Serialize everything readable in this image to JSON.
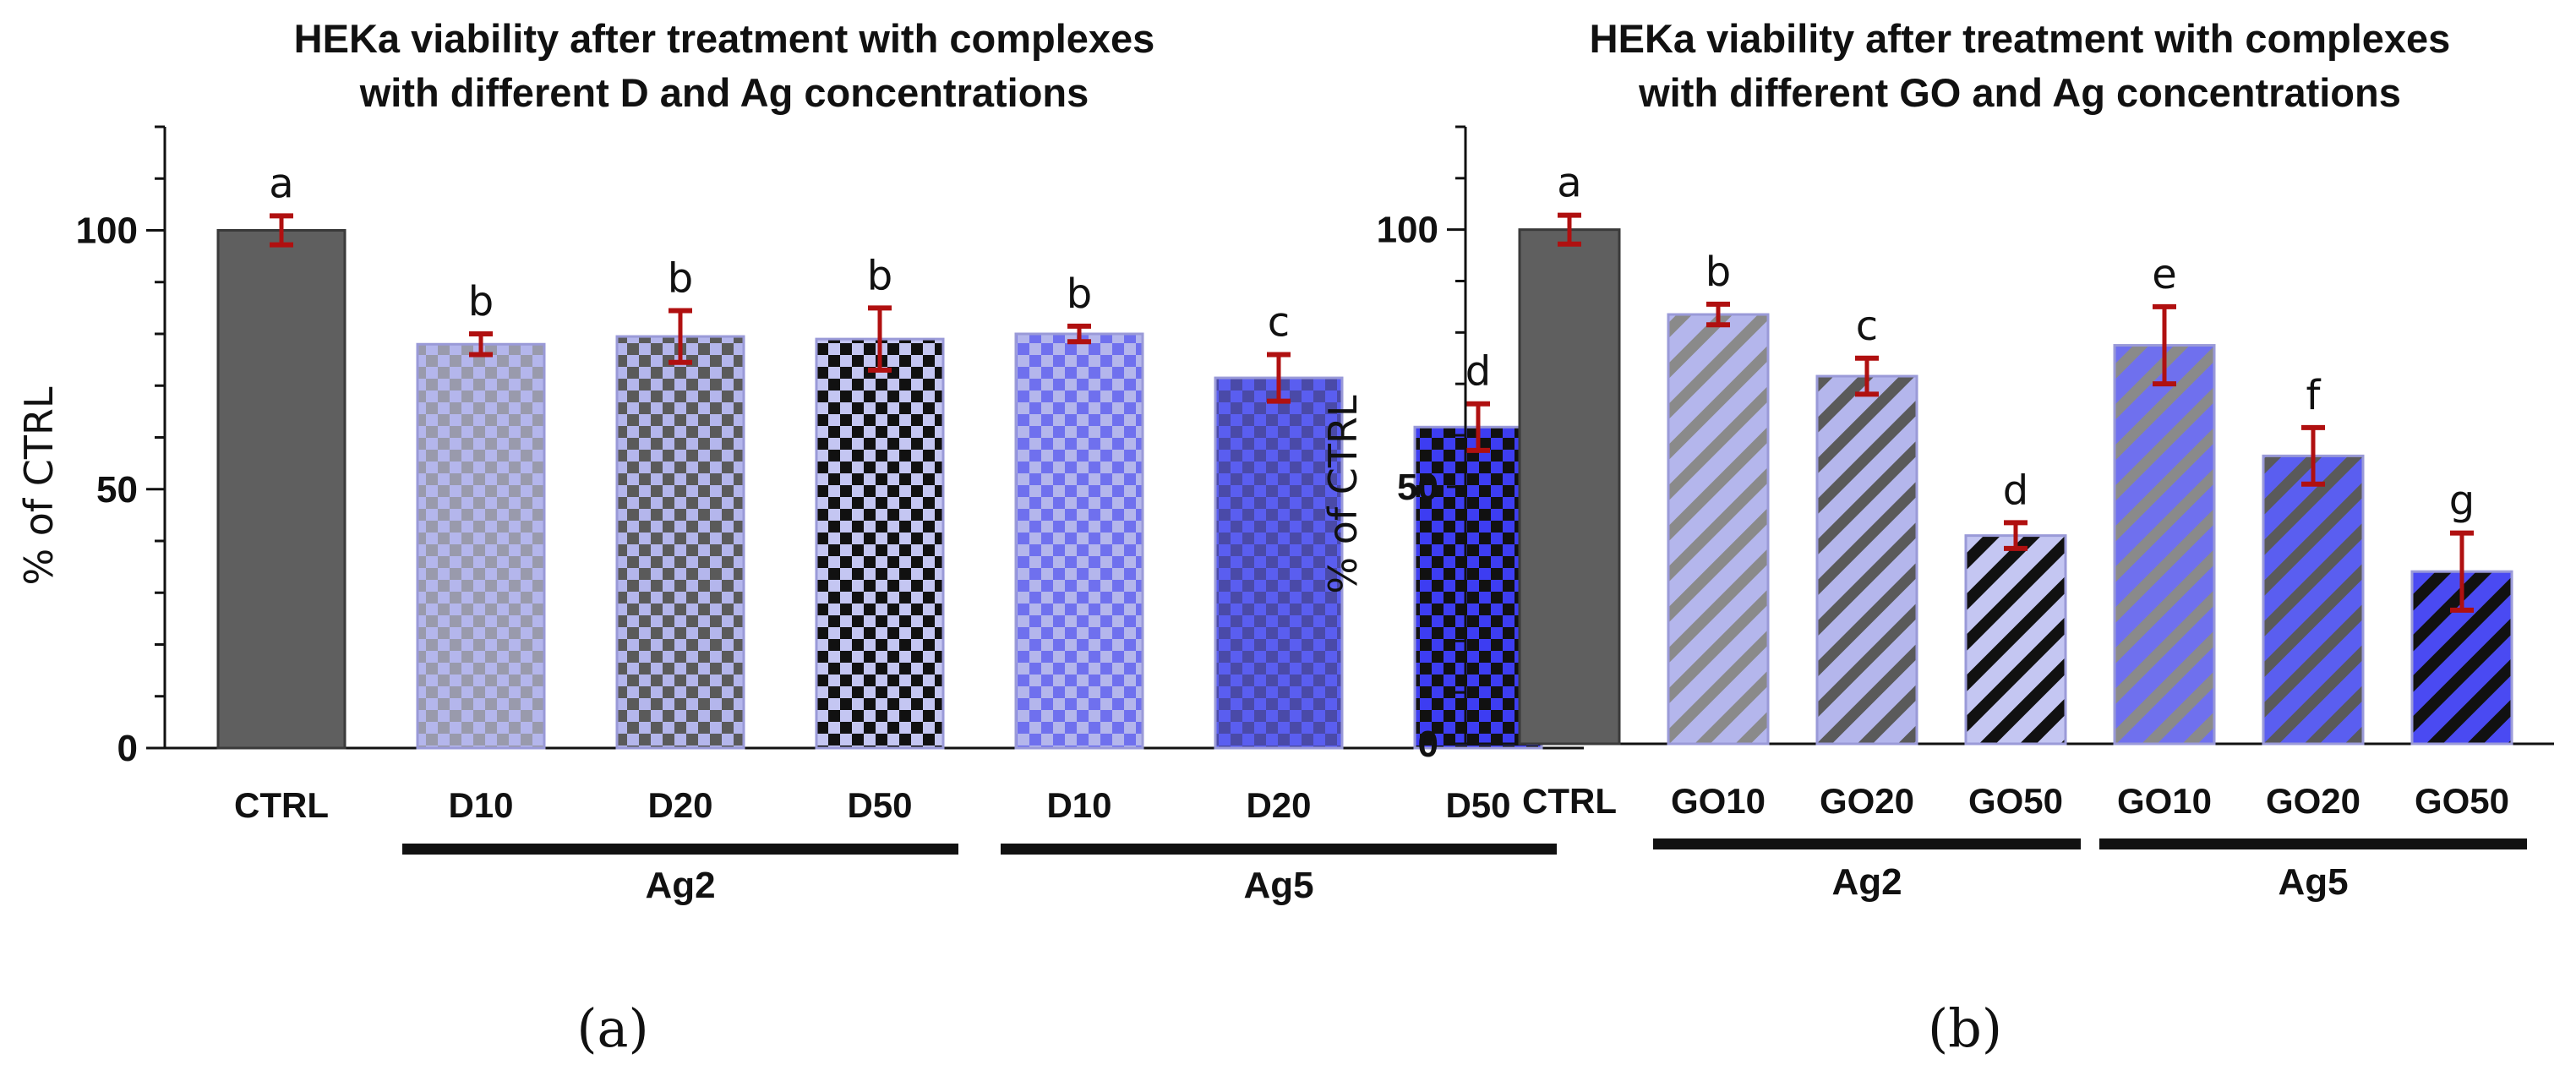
{
  "colors": {
    "ctrl": "#5f5f5f",
    "light": "#b4b6ec",
    "mid": "#6f70ee",
    "dark": "#3d3df2",
    "gray_pattern": "#8a8a8a",
    "dark_pattern": "#5a5a5a",
    "black": "#111111",
    "error": "#b01010"
  },
  "chart_data": [
    {
      "type": "bar",
      "panel_label": "(a)",
      "title": "HEKa viability after treatment with complexes",
      "subtitle": "with different D and Ag concentrations",
      "ylabel": "% of CTRL",
      "xlabel": "",
      "ylim": [
        0,
        120
      ],
      "yticks": [
        0,
        50,
        100
      ],
      "grid": false,
      "categories": [
        "CTRL",
        "D10",
        "D20",
        "D50",
        "D10",
        "D20",
        "D50"
      ],
      "values": [
        100,
        78,
        79.5,
        79,
        80,
        71.5,
        62
      ],
      "errors": [
        2.8,
        2,
        5,
        6,
        1.5,
        4.5,
        4.5
      ],
      "letters": [
        "a",
        "b",
        "b",
        "b",
        "b",
        "c",
        "d"
      ],
      "styles": [
        "ctrl",
        "check-light-gray",
        "check-light-dark",
        "check-light-black",
        "check-mid-light",
        "check-mid-dark",
        "check-dark-black"
      ],
      "groups": [
        {
          "label": "Ag2",
          "start": 1,
          "end": 3
        },
        {
          "label": "Ag5",
          "start": 4,
          "end": 6
        }
      ]
    },
    {
      "type": "bar",
      "panel_label": "(b)",
      "title": "HEKa viability after treatment with complexes",
      "subtitle": "with different GO and Ag concentrations",
      "ylabel": "% of CTRL",
      "xlabel": "",
      "ylim": [
        0,
        120
      ],
      "yticks": [
        0,
        50,
        100
      ],
      "grid": false,
      "categories": [
        "CTRL",
        "GO10",
        "GO20",
        "GO50",
        "GO10",
        "GO20",
        "GO50"
      ],
      "values": [
        100,
        83.5,
        71.5,
        40.5,
        77.5,
        56,
        33.5
      ],
      "errors": [
        2.8,
        2,
        3.5,
        2.5,
        7.5,
        5.5,
        7.5
      ],
      "letters": [
        "a",
        "b",
        "c",
        "d",
        "e",
        "f",
        "g"
      ],
      "styles": [
        "ctrl",
        "stripe-light-gray",
        "stripe-light-dark",
        "stripe-light-black",
        "stripe-mid-gray",
        "stripe-mid-dark",
        "stripe-dark-black"
      ],
      "groups": [
        {
          "label": "Ag2",
          "start": 1,
          "end": 3
        },
        {
          "label": "Ag5",
          "start": 4,
          "end": 6
        }
      ]
    }
  ]
}
